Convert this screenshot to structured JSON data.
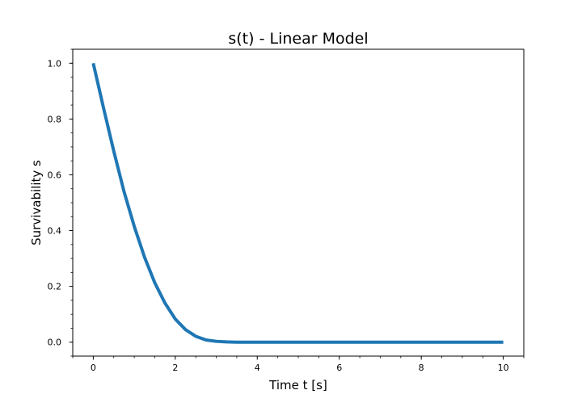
{
  "chart_data": {
    "type": "line",
    "title": "s(t) - Linear Model",
    "xlabel": "Time t [s]",
    "ylabel": "Survivability s",
    "xlim": [
      -0.5,
      10.5
    ],
    "ylim": [
      -0.05,
      1.05
    ],
    "xticks": [
      0,
      2,
      4,
      6,
      8,
      10
    ],
    "yticks": [
      0.0,
      0.2,
      0.4,
      0.6,
      0.8,
      1.0
    ],
    "xtick_labels": [
      "0",
      "2",
      "4",
      "6",
      "8",
      "10"
    ],
    "ytick_labels": [
      "0.0",
      "0.2",
      "0.4",
      "0.6",
      "0.8",
      "1.0"
    ],
    "x_minor_step": 0.5,
    "y_minor_step": 0.05,
    "grid": false,
    "series": [
      {
        "color": "#1f77b4",
        "x": [
          0,
          0.25,
          0.5,
          0.75,
          1.0,
          1.25,
          1.5,
          1.75,
          2.0,
          2.25,
          2.5,
          2.75,
          3.0,
          3.25,
          3.5,
          4.0,
          5.0,
          6.0,
          7.0,
          8.0,
          9.0,
          10.0
        ],
        "y": [
          1.0,
          0.84,
          0.685,
          0.54,
          0.415,
          0.305,
          0.213,
          0.14,
          0.083,
          0.045,
          0.021,
          0.008,
          0.003,
          0.001,
          0.0,
          0.0,
          0.0,
          0.0,
          0.0,
          0.0,
          0.0,
          0.0
        ]
      }
    ]
  }
}
